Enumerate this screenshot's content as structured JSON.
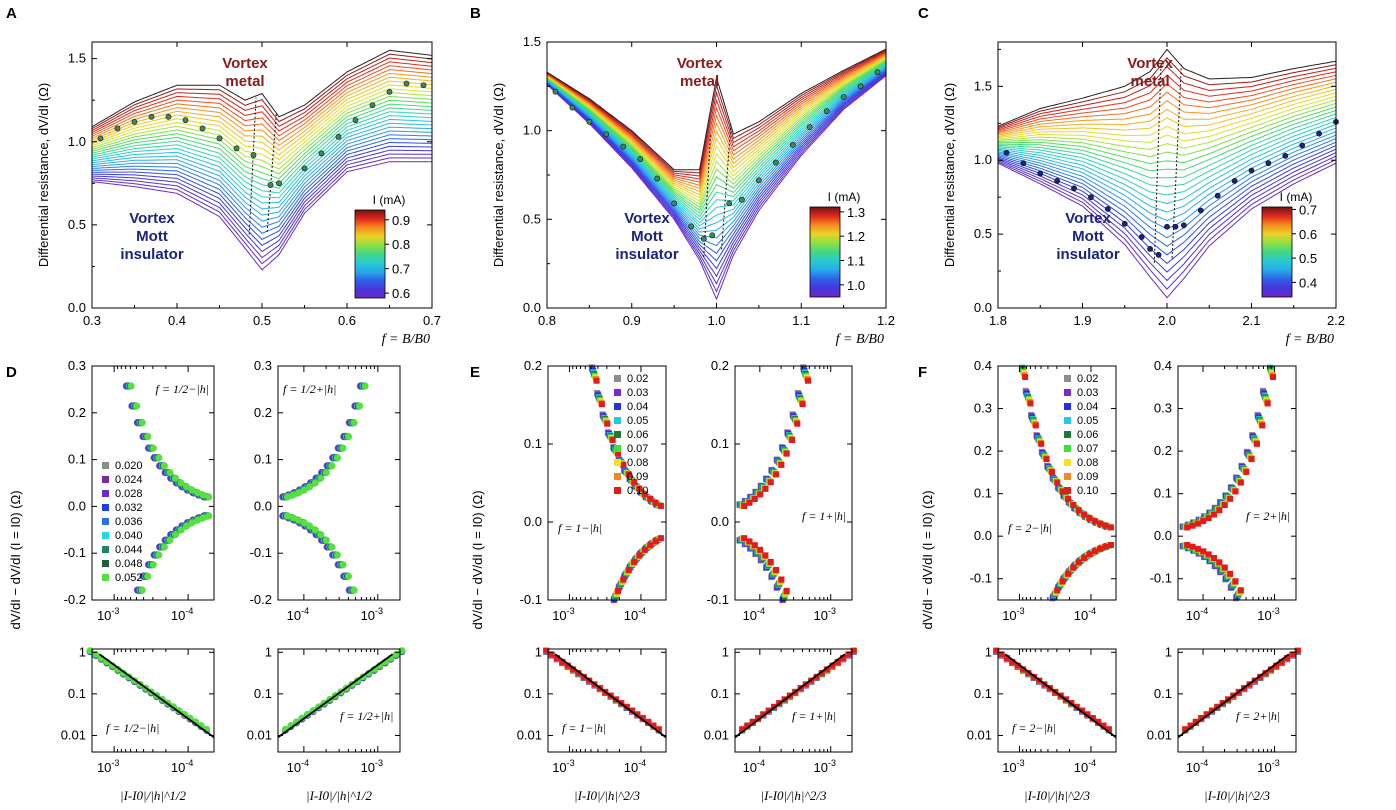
{
  "figure": {
    "panels": {
      "A": {
        "letter": "A",
        "ylabel": "Differential resistance, dV/dI (Ω)",
        "xlabel": "f = B/B0",
        "xlim": [
          0.3,
          0.7
        ],
        "ylim": [
          0.0,
          1.6
        ],
        "xticks": [
          "0.3",
          "0.4",
          "0.5",
          "0.6",
          "0.7"
        ],
        "xtick_vals": [
          0.3,
          0.4,
          0.5,
          0.6,
          0.7
        ],
        "yticks": [
          "0.0",
          "0.5",
          "1.0",
          "1.5"
        ],
        "ytick_vals": [
          0.0,
          0.5,
          1.0,
          1.5
        ],
        "label_metal": "Vortex metal",
        "label_insulator": "Vortex Mott insulator",
        "colorbar": {
          "title": "I (mA)",
          "ticks": [
            "0.9",
            "0.8",
            "0.7",
            "0.6"
          ],
          "tick_vals": [
            0.9,
            0.8,
            0.7,
            0.6
          ],
          "range": [
            0.58,
            0.94
          ]
        },
        "center": 0.5,
        "curve_count": 30,
        "top_curve": {
          "x": [
            0.3,
            0.35,
            0.4,
            0.45,
            0.48,
            0.5,
            0.52,
            0.55,
            0.6,
            0.65,
            0.7
          ],
          "y": [
            1.09,
            1.24,
            1.34,
            1.34,
            1.25,
            1.29,
            1.15,
            1.22,
            1.42,
            1.55,
            1.52
          ]
        },
        "bottom_curve": {
          "x": [
            0.3,
            0.35,
            0.4,
            0.45,
            0.48,
            0.5,
            0.52,
            0.55,
            0.6,
            0.65,
            0.7
          ],
          "y": [
            0.76,
            0.73,
            0.69,
            0.55,
            0.36,
            0.23,
            0.32,
            0.57,
            0.82,
            0.88,
            0.88
          ]
        },
        "markers": {
          "x": [
            0.31,
            0.33,
            0.35,
            0.37,
            0.39,
            0.41,
            0.43,
            0.45,
            0.47,
            0.49,
            0.51,
            0.52,
            0.55,
            0.57,
            0.59,
            0.61,
            0.63,
            0.65,
            0.67,
            0.69
          ],
          "y": [
            1.02,
            1.08,
            1.12,
            1.15,
            1.15,
            1.13,
            1.08,
            1.02,
            0.96,
            0.92,
            0.74,
            0.75,
            0.84,
            0.93,
            1.03,
            1.13,
            1.22,
            1.3,
            1.35,
            1.34
          ]
        }
      },
      "B": {
        "letter": "B",
        "ylabel": "Differential resistance, dV/dI (Ω)",
        "xlabel": "f = B/B0",
        "xlim": [
          0.8,
          1.2
        ],
        "ylim": [
          0.0,
          1.5
        ],
        "xticks": [
          "0.8",
          "0.9",
          "1.0",
          "1.1",
          "1.2"
        ],
        "xtick_vals": [
          0.8,
          0.9,
          1.0,
          1.1,
          1.2
        ],
        "yticks": [
          "0.0",
          "0.5",
          "1.0",
          "1.5"
        ],
        "ytick_vals": [
          0.0,
          0.5,
          1.0,
          1.5
        ],
        "label_metal": "Vortex metal",
        "label_insulator": "Vortex Mott insulator",
        "colorbar": {
          "title": "I (mA)",
          "ticks": [
            "1.3",
            "1.2",
            "1.1",
            "1.0"
          ],
          "tick_vals": [
            1.3,
            1.2,
            1.1,
            1.0
          ],
          "range": [
            0.95,
            1.32
          ]
        },
        "center": 1.0,
        "curve_count": 30,
        "top_curve": {
          "x": [
            0.8,
            0.85,
            0.9,
            0.95,
            0.98,
            1.0,
            1.02,
            1.05,
            1.1,
            1.15,
            1.2
          ],
          "y": [
            1.33,
            1.18,
            1.0,
            0.78,
            0.78,
            1.3,
            0.98,
            1.05,
            1.21,
            1.34,
            1.46
          ]
        },
        "bottom_curve": {
          "x": [
            0.8,
            0.85,
            0.9,
            0.95,
            0.98,
            1.0,
            1.02,
            1.05,
            1.1,
            1.15,
            1.2
          ],
          "y": [
            1.26,
            1.04,
            0.79,
            0.5,
            0.27,
            0.05,
            0.3,
            0.55,
            0.86,
            1.12,
            1.31
          ]
        },
        "markers": {
          "x": [
            0.81,
            0.83,
            0.85,
            0.87,
            0.89,
            0.91,
            0.93,
            0.95,
            0.97,
            0.985,
            0.995,
            1.015,
            1.03,
            1.05,
            1.07,
            1.09,
            1.11,
            1.13,
            1.15,
            1.17,
            1.19
          ],
          "y": [
            1.22,
            1.13,
            1.05,
            0.98,
            0.91,
            0.84,
            0.73,
            0.59,
            0.46,
            0.39,
            0.41,
            0.59,
            0.61,
            0.72,
            0.82,
            0.92,
            1.02,
            1.11,
            1.19,
            1.25,
            1.33
          ]
        }
      },
      "C": {
        "letter": "C",
        "ylabel": "Differential resistance, dV/dI (Ω)",
        "xlabel": "f = B/B0",
        "xlim": [
          1.8,
          2.2
        ],
        "ylim": [
          0.0,
          1.8
        ],
        "xticks": [
          "1.8",
          "1.9",
          "2.0",
          "2.1",
          "2.2"
        ],
        "xtick_vals": [
          1.8,
          1.9,
          2.0,
          2.1,
          2.2
        ],
        "yticks": [
          "0.0",
          "0.5",
          "1.0",
          "1.5"
        ],
        "ytick_vals": [
          0.0,
          0.5,
          1.0,
          1.5
        ],
        "label_metal": "Vortex metal",
        "label_insulator": "Vortex Mott insulator",
        "colorbar": {
          "title": "I (mA)",
          "ticks": [
            "0.7",
            "0.6",
            "0.5",
            "0.4"
          ],
          "tick_vals": [
            0.7,
            0.6,
            0.5,
            0.4
          ],
          "range": [
            0.34,
            0.71
          ]
        },
        "center": 2.0,
        "curve_count": 30,
        "top_curve": {
          "x": [
            1.8,
            1.85,
            1.9,
            1.95,
            1.98,
            2.0,
            2.02,
            2.05,
            2.1,
            2.15,
            2.2
          ],
          "y": [
            1.23,
            1.35,
            1.42,
            1.5,
            1.6,
            1.75,
            1.62,
            1.55,
            1.56,
            1.62,
            1.67
          ]
        },
        "bottom_curve": {
          "x": [
            1.8,
            1.85,
            1.9,
            1.95,
            1.98,
            2.0,
            2.02,
            2.05,
            2.1,
            2.15,
            2.2
          ],
          "y": [
            0.98,
            0.84,
            0.69,
            0.43,
            0.21,
            0.07,
            0.2,
            0.42,
            0.67,
            0.84,
            0.98
          ]
        },
        "markers": {
          "x": [
            1.81,
            1.83,
            1.85,
            1.87,
            1.89,
            1.91,
            1.93,
            1.95,
            1.97,
            1.98,
            1.99,
            2.0,
            2.01,
            2.02,
            2.04,
            2.06,
            2.08,
            2.1,
            2.12,
            2.14,
            2.16,
            2.18,
            2.2
          ],
          "y": [
            1.05,
            0.98,
            0.91,
            0.86,
            0.81,
            0.75,
            0.67,
            0.57,
            0.48,
            0.4,
            0.36,
            0.55,
            0.55,
            0.56,
            0.66,
            0.76,
            0.86,
            0.93,
            0.98,
            1.03,
            1.1,
            1.18,
            1.26
          ]
        }
      },
      "D": {
        "letter": "D",
        "ylabel": "dV/dI − dV/dI (I = I0) (Ω)",
        "xlabel": "|I-I0|/|h|^1/2",
        "upper_left": {
          "annot": "f = 1/2−|h|",
          "ylim": [
            -0.2,
            0.3
          ],
          "yticks": [
            "0.3",
            "0.2",
            "0.1",
            "0.0",
            "-0.1",
            "-0.2"
          ],
          "ytick_vals": [
            0.3,
            0.2,
            0.1,
            0.0,
            -0.1,
            -0.2
          ],
          "xticks": [
            "10-3",
            "10-4"
          ],
          "reversed": true
        },
        "upper_right": {
          "annot": "f = 1/2+|h|",
          "ylim": [
            -0.2,
            0.3
          ],
          "yticks": [
            "0.3",
            "0.2",
            "0.1",
            "0.0",
            "-0.1",
            "-0.2"
          ],
          "ytick_vals": [
            0.3,
            0.2,
            0.1,
            0.0,
            -0.1,
            -0.2
          ],
          "xticks": [
            "10-4",
            "10-3"
          ],
          "reversed": false
        },
        "lower_left": {
          "annot": "f = 1/2−|h|",
          "yticks": [
            "1",
            "0.1",
            "0.01"
          ],
          "ytick_vals": [
            1,
            0.1,
            0.01
          ],
          "xticks": [
            "10-3",
            "10-4"
          ],
          "reversed": true
        },
        "lower_right": {
          "annot": "f = 1/2+|h|",
          "yticks": [
            "1",
            "0.1",
            "0.01"
          ],
          "ytick_vals": [
            1,
            0.1,
            0.01
          ],
          "xticks": [
            "10-4",
            "10-3"
          ],
          "reversed": false
        },
        "legend": [
          "0.020",
          "0.024",
          "0.028",
          "0.032",
          "0.036",
          "0.040",
          "0.044",
          "0.048",
          "0.052"
        ],
        "legend_colors": [
          "#8c8c8c",
          "#7a2a9a",
          "#6a2ccf",
          "#1f3fe0",
          "#2d6fe8",
          "#26d7e6",
          "#20836a",
          "#1f5f3a",
          "#56e040"
        ]
      },
      "E": {
        "letter": "E",
        "ylabel": "dV/dI − dV/dI (I = I0) (Ω)",
        "xlabel": "|I-I0|/|h|^2/3",
        "upper_left": {
          "annot": "f = 1−|h|",
          "ylim": [
            -0.1,
            0.2
          ],
          "yticks": [
            "0.2",
            "0.1",
            "0.0",
            "-0.1"
          ],
          "ytick_vals": [
            0.2,
            0.1,
            0.0,
            -0.1
          ],
          "xticks": [
            "10-3",
            "10-4"
          ],
          "reversed": true
        },
        "upper_right": {
          "annot": "f = 1+|h|",
          "ylim": [
            -0.1,
            0.2
          ],
          "yticks": [
            "0.2",
            "0.1",
            "0.0",
            "-0.1"
          ],
          "ytick_vals": [
            0.2,
            0.1,
            0.0,
            -0.1
          ],
          "xticks": [
            "10-4",
            "10-3"
          ],
          "reversed": false
        },
        "lower_left": {
          "annot": "f = 1−|h|",
          "yticks": [
            "1",
            "0.1",
            "0.01"
          ],
          "ytick_vals": [
            1,
            0.1,
            0.01
          ],
          "xticks": [
            "10-3",
            "10-4"
          ],
          "reversed": true
        },
        "lower_right": {
          "annot": "f = 1+|h|",
          "yticks": [
            "1",
            "0.1",
            "0.01"
          ],
          "ytick_vals": [
            1,
            0.1,
            0.01
          ],
          "xticks": [
            "10-4",
            "10-3"
          ],
          "reversed": false
        },
        "legend": [
          "0.02",
          "0.03",
          "0.04",
          "0.05",
          "0.06",
          "0.07",
          "0.08",
          "0.09",
          "0.10"
        ],
        "legend_colors": [
          "#8c8c8c",
          "#7a2ad0",
          "#2232e0",
          "#22c8e8",
          "#1f7a3a",
          "#3ee03a",
          "#f0e61e",
          "#f08a1e",
          "#e21c1c"
        ]
      },
      "F": {
        "letter": "F",
        "ylabel": "dV/dI − dV/dI (I = I0) (Ω)",
        "xlabel": "|I-I0|/|h|^2/3",
        "upper_left": {
          "annot": "f = 2−|h|",
          "ylim": [
            -0.15,
            0.4
          ],
          "yticks": [
            "0.4",
            "0.3",
            "0.2",
            "0.1",
            "0.0",
            "-0.1"
          ],
          "ytick_vals": [
            0.4,
            0.3,
            0.2,
            0.1,
            0.0,
            -0.1
          ],
          "xticks": [
            "10-3",
            "10-4"
          ],
          "reversed": true
        },
        "upper_right": {
          "annot": "f = 2+|h|",
          "ylim": [
            -0.15,
            0.4
          ],
          "yticks": [
            "0.4",
            "0.3",
            "0.2",
            "0.1",
            "0.0",
            "-0.1"
          ],
          "ytick_vals": [
            0.4,
            0.3,
            0.2,
            0.1,
            0.0,
            -0.1
          ],
          "xticks": [
            "10-4",
            "10-3"
          ],
          "reversed": false
        },
        "lower_left": {
          "annot": "f = 2−|h|",
          "yticks": [
            "1",
            "0.1",
            "0.01"
          ],
          "ytick_vals": [
            1,
            0.1,
            0.01
          ],
          "xticks": [
            "10-3",
            "10-4"
          ],
          "reversed": true
        },
        "lower_right": {
          "annot": "f = 2+|h|",
          "yticks": [
            "1",
            "0.1",
            "0.01"
          ],
          "ytick_vals": [
            1,
            0.1,
            0.01
          ],
          "xticks": [
            "10-4",
            "10-3"
          ],
          "reversed": false
        },
        "legend": [
          "0.02",
          "0.03",
          "0.04",
          "0.05",
          "0.06",
          "0.07",
          "0.08",
          "0.09",
          "0.10"
        ],
        "legend_colors": [
          "#8c8c8c",
          "#7a2ad0",
          "#2232e0",
          "#22c8e8",
          "#1f7a3a",
          "#3ee03a",
          "#f0e61e",
          "#f08a1e",
          "#e21c1c"
        ]
      }
    },
    "colors": {
      "metal_label": "#8b1a1a",
      "insulator_label": "#1a237e",
      "marker_fill": "#3c8c5a"
    }
  },
  "chart_data": [
    {
      "type": "line",
      "panel": "A",
      "xlabel": "f = B/B0",
      "ylabel": "Differential resistance, dV/dI (Ω)",
      "xlim": [
        0.3,
        0.7
      ],
      "ylim": [
        0.0,
        1.6
      ],
      "colorbar": "I (mA)",
      "colorbar_range": [
        0.6,
        0.9
      ],
      "annotations": [
        "Vortex metal",
        "Vortex Mott insulator"
      ]
    },
    {
      "type": "line",
      "panel": "B",
      "xlabel": "f = B/B0",
      "ylabel": "Differential resistance, dV/dI (Ω)",
      "xlim": [
        0.8,
        1.2
      ],
      "ylim": [
        0.0,
        1.5
      ],
      "colorbar": "I (mA)",
      "colorbar_range": [
        1.0,
        1.3
      ],
      "annotations": [
        "Vortex metal",
        "Vortex Mott insulator"
      ]
    },
    {
      "type": "line",
      "panel": "C",
      "xlabel": "f = B/B0",
      "ylabel": "Differential resistance, dV/dI (Ω)",
      "xlim": [
        1.8,
        2.2
      ],
      "ylim": [
        0.0,
        1.8
      ],
      "colorbar": "I (mA)",
      "colorbar_range": [
        0.4,
        0.7
      ],
      "annotations": [
        "Vortex metal",
        "Vortex Mott insulator"
      ]
    },
    {
      "type": "scatter",
      "panel": "D",
      "xlabel": "|I-I0|/|h|^1/2",
      "ylabel": "dV/dI − dV/dI (I = I0) (Ω)",
      "x_scale": "log",
      "series_legend": [
        "0.020",
        "0.024",
        "0.028",
        "0.032",
        "0.036",
        "0.040",
        "0.044",
        "0.048",
        "0.052"
      ]
    },
    {
      "type": "scatter",
      "panel": "E",
      "xlabel": "|I-I0|/|h|^2/3",
      "ylabel": "dV/dI − dV/dI (I = I0) (Ω)",
      "x_scale": "log",
      "series_legend": [
        "0.02",
        "0.03",
        "0.04",
        "0.05",
        "0.06",
        "0.07",
        "0.08",
        "0.09",
        "0.10"
      ]
    },
    {
      "type": "scatter",
      "panel": "F",
      "xlabel": "|I-I0|/|h|^2/3",
      "ylabel": "dV/dI − dV/dI (I = I0) (Ω)",
      "x_scale": "log",
      "series_legend": [
        "0.02",
        "0.03",
        "0.04",
        "0.05",
        "0.06",
        "0.07",
        "0.08",
        "0.09",
        "0.10"
      ]
    }
  ]
}
